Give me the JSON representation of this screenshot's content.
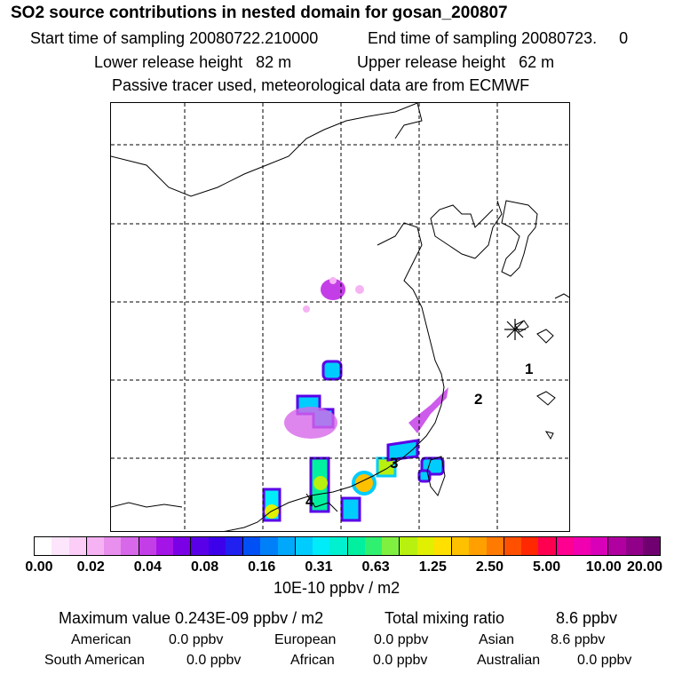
{
  "header": {
    "title": "SO2 source contributions in nested domain for gosan_200807",
    "start_sampling": "Start time of sampling 20080722.210000",
    "end_sampling": "End time of sampling 20080723.     0",
    "lower_release": "Lower release height   82 m",
    "upper_release": "Upper release height   62 m",
    "tracer_note": "Passive tracer used, meteorological data are from ECMWF"
  },
  "map": {
    "point_labels": [
      "1",
      "2",
      "3",
      "4"
    ],
    "receptor_marker": "asterisk-icon"
  },
  "colorbar": {
    "tick_labels": [
      "0.00",
      "0.02",
      "0.04",
      "0.08",
      "0.16",
      "0.31",
      "0.63",
      "1.25",
      "2.50",
      "5.00",
      "10.00",
      "20.00"
    ],
    "unit": "10E-10 ppbv / m2",
    "colors": [
      "#ffffff",
      "#fde6fb",
      "#fbcdf7",
      "#f6b3f4",
      "#e98fee",
      "#d768ea",
      "#c43ee8",
      "#a414e6",
      "#7a00e6",
      "#5a00e8",
      "#3c00ea",
      "#2020f0",
      "#0050f5",
      "#0080f8",
      "#00a8fb",
      "#00ccfd",
      "#00ecf8",
      "#00f0d0",
      "#00f0a0",
      "#30f070",
      "#80f040",
      "#b8f010",
      "#e0f000",
      "#ffe000",
      "#ffc000",
      "#ffa000",
      "#ff7a00",
      "#ff5000",
      "#ff2800",
      "#ff0050",
      "#ff0090",
      "#f000b0",
      "#d800b8",
      "#b000a0",
      "#900088",
      "#700070"
    ]
  },
  "footer": {
    "maximum": "Maximum value  0.243E-09 ppbv / m2",
    "total_label": "Total mixing ratio",
    "total_value": "8.6 ppbv",
    "regions": [
      {
        "name": "American",
        "value": "0.0 ppbv"
      },
      {
        "name": "European",
        "value": "0.0 ppbv"
      },
      {
        "name": "Asian",
        "value": "8.6 ppbv"
      },
      {
        "name": "South American",
        "value": "0.0 ppbv"
      },
      {
        "name": "African",
        "value": "0.0 ppbv"
      },
      {
        "name": "Australian",
        "value": "0.0 ppbv"
      }
    ]
  }
}
